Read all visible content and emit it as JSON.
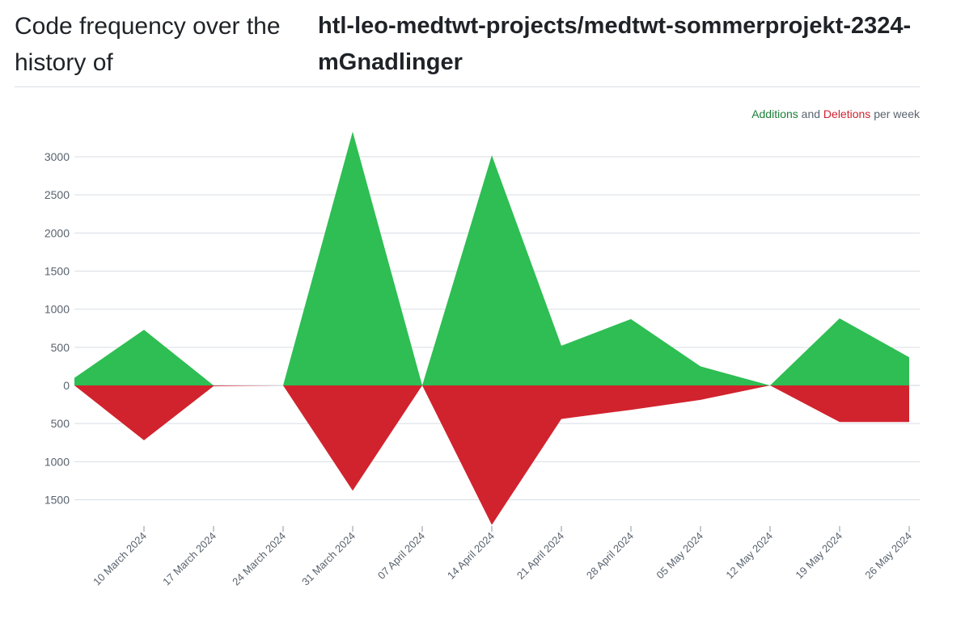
{
  "header": {
    "title_prefix": "Code frequency over the history of",
    "repo": "htl-leo-medtwt-projects/medtwt-sommerprojekt-2324-mGnadlinger"
  },
  "legend": {
    "additions": "Additions",
    "and": "and",
    "deletions": "Deletions",
    "suffix": "per week"
  },
  "colors": {
    "additions": "#2ebe53",
    "deletions": "#d1232e",
    "grid": "#d8dee4",
    "zero_line": "#c9d1d9",
    "axis_text": "#59636e"
  },
  "chart_data": {
    "type": "area",
    "title": "",
    "xlabel": "",
    "ylabel": "",
    "x": [
      "2024-03-03",
      "2024-03-10",
      "2024-03-17",
      "2024-03-24",
      "2024-03-31",
      "2024-04-07",
      "2024-04-14",
      "2024-04-21",
      "2024-04-28",
      "2024-05-05",
      "2024-05-12",
      "2024-05-19",
      "2024-05-26"
    ],
    "tick_labels": [
      "10 March 2024",
      "17 March 2024",
      "24 March 2024",
      "31 March 2024",
      "07 April 2024",
      "14 April 2024",
      "21 April 2024",
      "28 April 2024",
      "05 May 2024",
      "12 May 2024",
      "19 May 2024",
      "26 May 2024"
    ],
    "y_ticks": [
      3000,
      2500,
      2000,
      1500,
      1000,
      500,
      0,
      -500,
      -1000,
      -1500
    ],
    "y_tick_labels": [
      "3000",
      "2500",
      "2000",
      "1500",
      "1000",
      "500",
      "0",
      "500",
      "1000",
      "1500"
    ],
    "ylim": [
      -1820,
      3340
    ],
    "series": [
      {
        "name": "Additions",
        "values": [
          100,
          730,
          0,
          0,
          3330,
          0,
          3020,
          520,
          870,
          250,
          0,
          880,
          370
        ]
      },
      {
        "name": "Deletions",
        "values": [
          0,
          -720,
          -10,
          0,
          -1380,
          0,
          -1830,
          -440,
          -320,
          -190,
          0,
          -480,
          -480
        ]
      }
    ],
    "grid": true,
    "legend_position": "top-right"
  }
}
